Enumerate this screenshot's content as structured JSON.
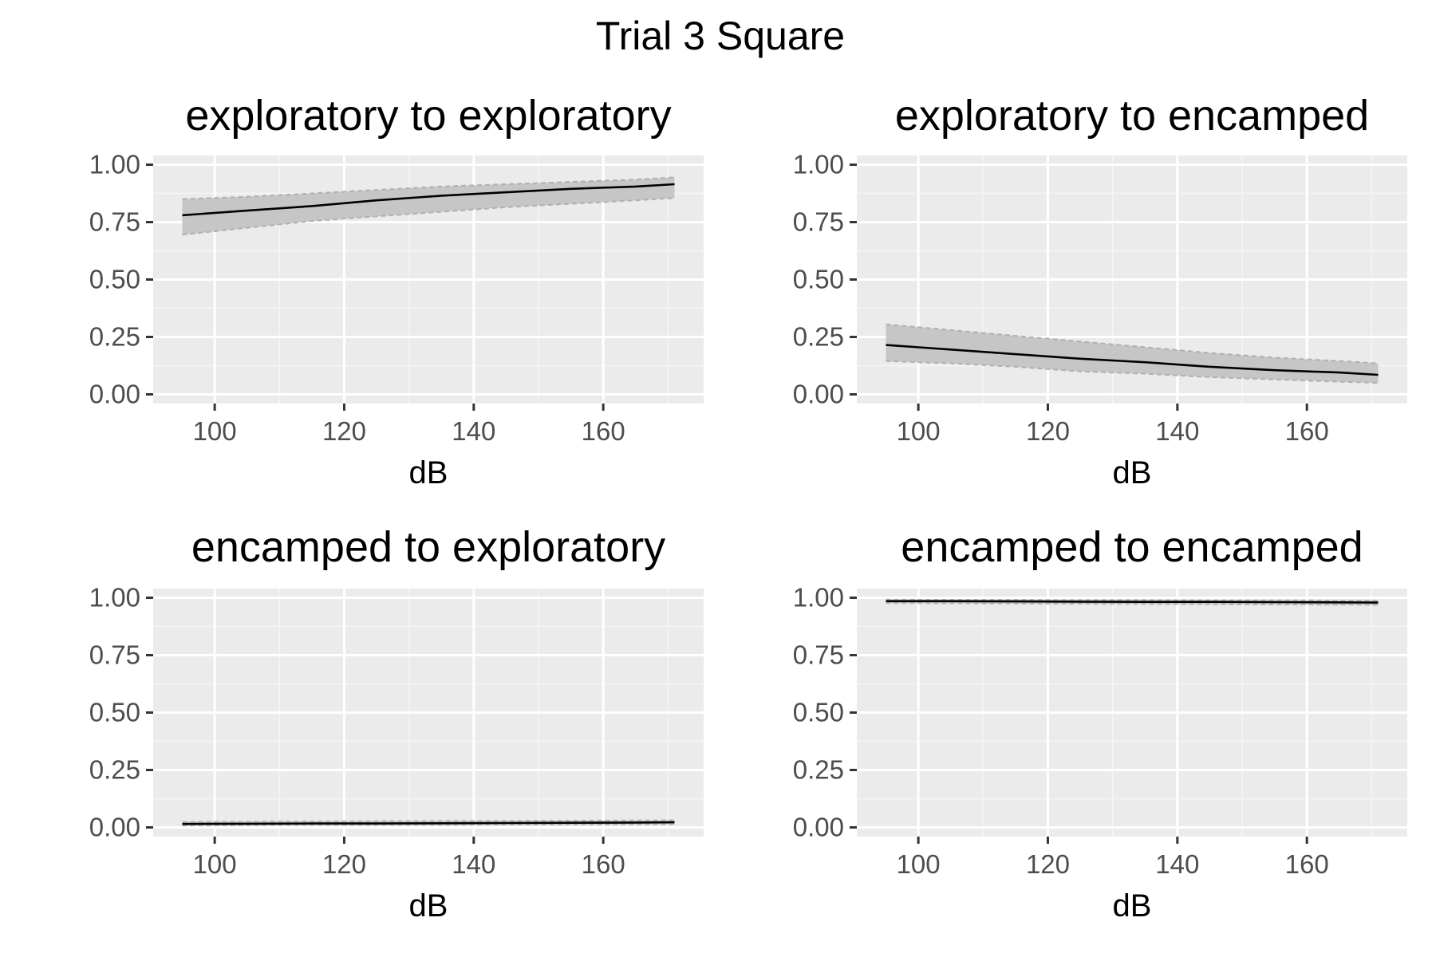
{
  "chart_data": {
    "title": "Trial 3 Square",
    "type": "line",
    "panels": [
      {
        "title": "exploratory to exploratory",
        "xlabel": "dB",
        "ylabel": "",
        "xlim": [
          90.5,
          175.5
        ],
        "ylim": [
          -0.04,
          1.04
        ],
        "x_ticks": [
          100,
          120,
          140,
          160
        ],
        "x_tick_labels": [
          "100",
          "120",
          "140",
          "160"
        ],
        "y_ticks": [
          0,
          0.25,
          0.5,
          0.75,
          1
        ],
        "y_tick_labels": [
          "0.00",
          "0.25",
          "0.50",
          "0.75",
          "1.00"
        ],
        "grid": true,
        "series": {
          "x": [
            95,
            105,
            115,
            125,
            135,
            145,
            155,
            165,
            171
          ],
          "fit": [
            0.78,
            0.8,
            0.82,
            0.845,
            0.865,
            0.88,
            0.895,
            0.905,
            0.915
          ],
          "lower": [
            0.695,
            0.725,
            0.755,
            0.775,
            0.795,
            0.815,
            0.83,
            0.845,
            0.855
          ],
          "upper": [
            0.85,
            0.86,
            0.875,
            0.89,
            0.905,
            0.915,
            0.925,
            0.935,
            0.945
          ]
        }
      },
      {
        "title": "exploratory to encamped",
        "xlabel": "dB",
        "ylabel": "",
        "xlim": [
          90.5,
          175.5
        ],
        "ylim": [
          -0.04,
          1.04
        ],
        "x_ticks": [
          100,
          120,
          140,
          160
        ],
        "x_tick_labels": [
          "100",
          "120",
          "140",
          "160"
        ],
        "y_ticks": [
          0,
          0.25,
          0.5,
          0.75,
          1
        ],
        "y_tick_labels": [
          "0.00",
          "0.25",
          "0.50",
          "0.75",
          "1.00"
        ],
        "grid": true,
        "series": {
          "x": [
            95,
            105,
            115,
            125,
            135,
            145,
            155,
            165,
            171
          ],
          "fit": [
            0.215,
            0.195,
            0.175,
            0.155,
            0.14,
            0.12,
            0.105,
            0.095,
            0.085
          ],
          "lower": [
            0.145,
            0.135,
            0.12,
            0.1,
            0.09,
            0.075,
            0.065,
            0.055,
            0.05
          ],
          "upper": [
            0.305,
            0.28,
            0.255,
            0.23,
            0.205,
            0.18,
            0.16,
            0.145,
            0.135
          ]
        }
      },
      {
        "title": "encamped to exploratory",
        "xlabel": "dB",
        "ylabel": "",
        "xlim": [
          90.5,
          175.5
        ],
        "ylim": [
          -0.04,
          1.04
        ],
        "x_ticks": [
          100,
          120,
          140,
          160
        ],
        "x_tick_labels": [
          "100",
          "120",
          "140",
          "160"
        ],
        "y_ticks": [
          0,
          0.25,
          0.5,
          0.75,
          1
        ],
        "y_tick_labels": [
          "0.00",
          "0.25",
          "0.50",
          "0.75",
          "1.00"
        ],
        "grid": true,
        "series": {
          "x": [
            95,
            105,
            115,
            125,
            135,
            145,
            155,
            165,
            171
          ],
          "fit": [
            0.015,
            0.016,
            0.017,
            0.017,
            0.018,
            0.019,
            0.02,
            0.021,
            0.022
          ],
          "lower": [
            0.008,
            0.009,
            0.01,
            0.01,
            0.011,
            0.012,
            0.012,
            0.013,
            0.014
          ],
          "upper": [
            0.024,
            0.025,
            0.026,
            0.027,
            0.028,
            0.028,
            0.029,
            0.03,
            0.031
          ]
        }
      },
      {
        "title": "encamped to encamped",
        "xlabel": "dB",
        "ylabel": "",
        "xlim": [
          90.5,
          175.5
        ],
        "ylim": [
          -0.04,
          1.04
        ],
        "x_ticks": [
          100,
          120,
          140,
          160
        ],
        "x_tick_labels": [
          "100",
          "120",
          "140",
          "160"
        ],
        "y_ticks": [
          0,
          0.25,
          0.5,
          0.75,
          1
        ],
        "y_tick_labels": [
          "0.00",
          "0.25",
          "0.50",
          "0.75",
          "1.00"
        ],
        "grid": true,
        "series": {
          "x": [
            95,
            105,
            115,
            125,
            135,
            145,
            155,
            165,
            171
          ],
          "fit": [
            0.985,
            0.985,
            0.984,
            0.983,
            0.982,
            0.982,
            0.981,
            0.98,
            0.979
          ],
          "lower": [
            0.977,
            0.976,
            0.975,
            0.974,
            0.973,
            0.972,
            0.971,
            0.97,
            0.969
          ],
          "upper": [
            0.992,
            0.991,
            0.991,
            0.99,
            0.99,
            0.989,
            0.989,
            0.988,
            0.988
          ]
        }
      }
    ]
  },
  "colors": {
    "panel_background": "#ebebeb",
    "grid_major": "#ffffff",
    "grid_minor": "#f5f5f5",
    "ribbon_fill": "#c4c4c4",
    "ribbon_edge": "#b0b0b0",
    "fit_line": "#000000",
    "tick_mark": "#333333"
  }
}
